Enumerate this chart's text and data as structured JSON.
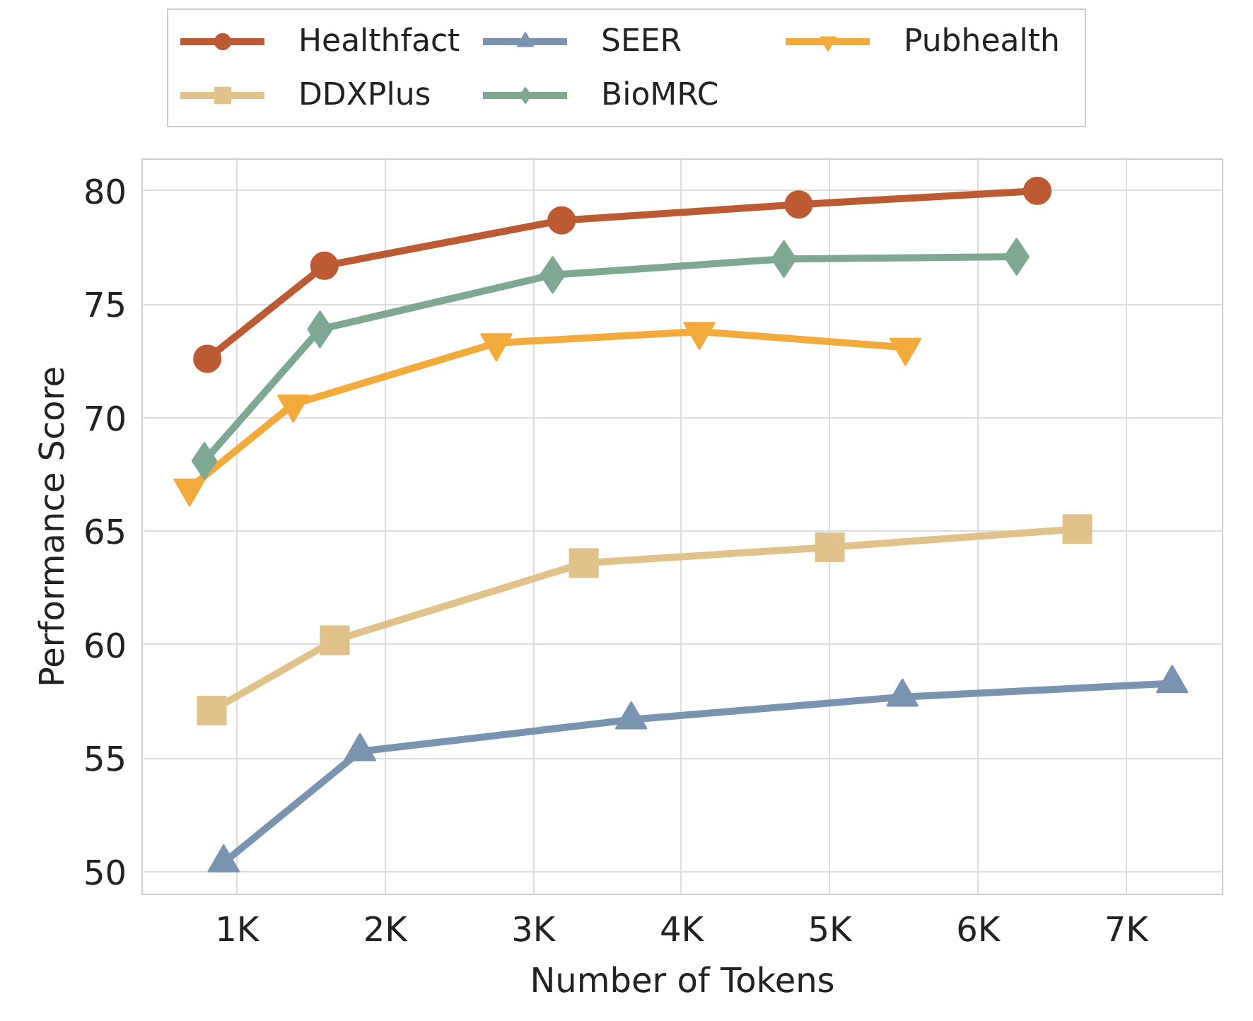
{
  "chart_data": {
    "type": "line",
    "xlabel": "Number of Tokens",
    "ylabel": "Performance Score",
    "xlim": [
      360,
      7650
    ],
    "ylim": [
      49,
      81.4
    ],
    "xticks": [
      {
        "value": 1000,
        "label": "1K"
      },
      {
        "value": 2000,
        "label": "2K"
      },
      {
        "value": 3000,
        "label": "3K"
      },
      {
        "value": 4000,
        "label": "4K"
      },
      {
        "value": 5000,
        "label": "5K"
      },
      {
        "value": 6000,
        "label": "6K"
      },
      {
        "value": 7000,
        "label": "7K"
      }
    ],
    "yticks": [
      50,
      55,
      60,
      65,
      70,
      75,
      80
    ],
    "grid": true,
    "legend": "top",
    "line_style": "solid",
    "series": [
      {
        "name": "Healthfact",
        "color": "#bc5a34",
        "marker": "circle",
        "x": [
          800,
          1590,
          3190,
          4790,
          6400
        ],
        "values": [
          72.6,
          76.7,
          78.7,
          79.4,
          80.0
        ]
      },
      {
        "name": "SEER",
        "color": "#7a93b0",
        "marker": "triangle",
        "x": [
          910,
          1830,
          3660,
          5490,
          7310
        ],
        "values": [
          50.4,
          55.3,
          56.7,
          57.7,
          58.3
        ]
      },
      {
        "name": "Pubhealth",
        "color": "#f2aa3b",
        "marker": "triangle_down",
        "x": [
          680,
          1380,
          2750,
          4120,
          5510
        ],
        "values": [
          66.9,
          70.6,
          73.3,
          73.8,
          73.1
        ]
      },
      {
        "name": "DDXPlus",
        "color": "#e0c28a",
        "marker": "square",
        "x": [
          830,
          1660,
          3340,
          5000,
          6670
        ],
        "values": [
          57.1,
          60.2,
          63.6,
          64.3,
          65.1
        ]
      },
      {
        "name": "BioMRC",
        "color": "#7fa892",
        "marker": "diamond",
        "x": [
          780,
          1560,
          3130,
          4690,
          6260
        ],
        "values": [
          68.1,
          73.9,
          76.3,
          77.0,
          77.1
        ]
      }
    ]
  }
}
